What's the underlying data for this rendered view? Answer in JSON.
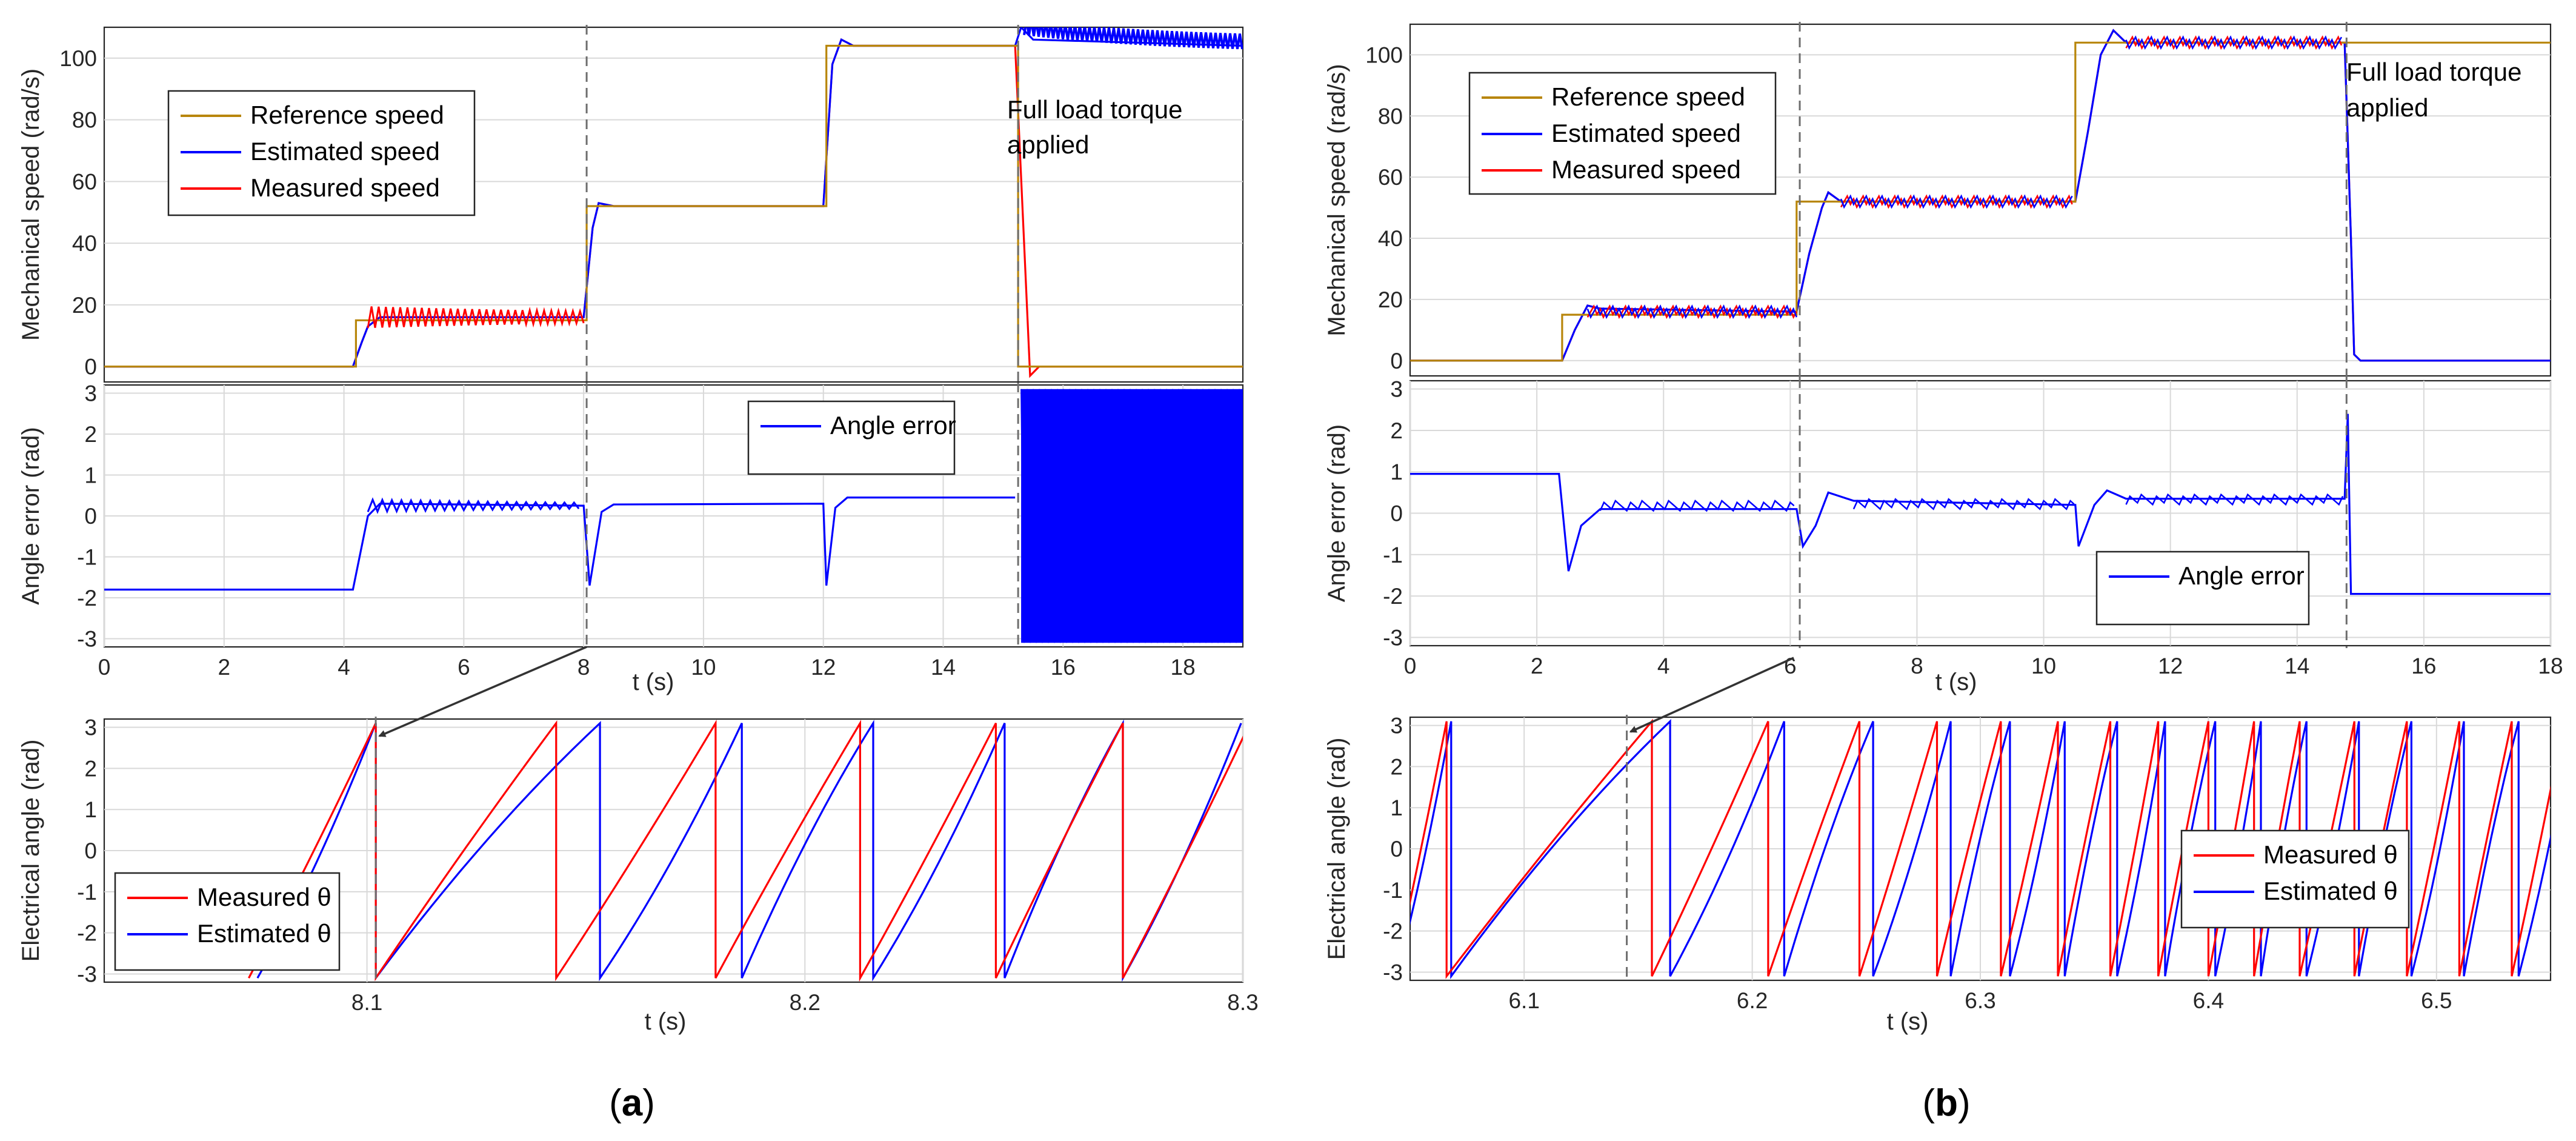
{
  "chart_data": [
    {
      "id": "a_speed",
      "type": "line",
      "xlim": [
        0,
        19
      ],
      "ylim": [
        -5,
        110
      ],
      "ylabel": "Mechanical speed (rad/s)",
      "yticks": [
        "0",
        "20",
        "40",
        "60",
        "80",
        "100"
      ],
      "grid": true,
      "legend": {
        "position": "top-left",
        "entries": [
          "Reference speed",
          "Estimated speed",
          "Measured speed"
        ]
      },
      "annotation": [
        "Full load torque",
        "applied"
      ],
      "markers_x": [
        8.05,
        15.25
      ],
      "series": [
        {
          "name": "Reference speed",
          "color": "#b8860b",
          "points": [
            [
              0,
              0
            ],
            [
              4.2,
              0
            ],
            [
              4.2,
              15
            ],
            [
              8.05,
              15
            ],
            [
              8.05,
              52
            ],
            [
              12.05,
              52
            ],
            [
              12.05,
              104
            ],
            [
              15.25,
              104
            ],
            [
              15.25,
              0
            ],
            [
              19,
              0
            ]
          ]
        },
        {
          "name": "Estimated speed",
          "color": "#0000ff",
          "points": [
            [
              0,
              0
            ],
            [
              4.15,
              0
            ],
            [
              4.3,
              8
            ],
            [
              4.4,
              13
            ],
            [
              4.6,
              16
            ],
            [
              6,
              16
            ],
            [
              8.0,
              16
            ],
            [
              8.15,
              45
            ],
            [
              8.25,
              53
            ],
            [
              8.5,
              52
            ],
            [
              12,
              52
            ],
            [
              12.15,
              98
            ],
            [
              12.3,
              106
            ],
            [
              12.5,
              104
            ],
            [
              15.2,
              104
            ],
            [
              15.3,
              110
            ],
            [
              15.5,
              106
            ],
            [
              19,
              104
            ]
          ]
        },
        {
          "name": "Measured speed",
          "color": "#ff0000",
          "points": [
            [
              0,
              0
            ],
            [
              4.15,
              0
            ],
            [
              4.3,
              8
            ],
            [
              4.4,
              13
            ],
            [
              4.6,
              16
            ],
            [
              6,
              16
            ],
            [
              8.0,
              16
            ],
            [
              8.15,
              45
            ],
            [
              8.25,
              53
            ],
            [
              8.5,
              52
            ],
            [
              12,
              52
            ],
            [
              12.15,
              98
            ],
            [
              12.3,
              106
            ],
            [
              12.5,
              104
            ],
            [
              15.2,
              104
            ],
            [
              15.35,
              40
            ],
            [
              15.45,
              -3
            ],
            [
              15.6,
              0
            ],
            [
              19,
              0
            ]
          ]
        }
      ]
    },
    {
      "id": "a_angle_err",
      "type": "line",
      "xlim": [
        0,
        19
      ],
      "ylim": [
        -3.2,
        3.2
      ],
      "xlabel": "t (s)",
      "ylabel": "Angle error (rad)",
      "xticks": [
        "0",
        "2",
        "4",
        "6",
        "8",
        "10",
        "12",
        "14",
        "16",
        "18"
      ],
      "yticks": [
        "-3",
        "-2",
        "-1",
        "0",
        "1",
        "2",
        "3"
      ],
      "grid": true,
      "legend": {
        "position": "top-right",
        "entries": [
          "Angle error"
        ]
      },
      "markers_x": [
        8.05,
        15.25
      ],
      "series": [
        {
          "name": "Angle error",
          "color": "#0000ff",
          "points": [
            [
              0,
              -1.8
            ],
            [
              4.15,
              -1.8
            ],
            [
              4.4,
              0.0
            ],
            [
              4.6,
              0.3
            ],
            [
              8.0,
              0.25
            ],
            [
              8.1,
              -1.7
            ],
            [
              8.3,
              0.1
            ],
            [
              8.5,
              0.28
            ],
            [
              12,
              0.3
            ],
            [
              12.05,
              -1.7
            ],
            [
              12.2,
              0.2
            ],
            [
              12.4,
              0.45
            ],
            [
              15.2,
              0.45
            ]
          ]
        }
      ],
      "oscillation": {
        "x_range": [
          15.3,
          19
        ],
        "amplitude": 3.1
      }
    },
    {
      "id": "a_elec_angle",
      "type": "line",
      "xlim": [
        8.04,
        8.3
      ],
      "ylim": [
        -3.2,
        3.2
      ],
      "xlabel": "t (s)",
      "ylabel": "Electrical angle (rad)",
      "xticks": [
        "8.1",
        "8.2",
        "8.3"
      ],
      "yticks": [
        "-3",
        "-2",
        "-1",
        "0",
        "1",
        "2",
        "3"
      ],
      "grid": true,
      "legend": {
        "position": "bottom-left",
        "entries": [
          "Measured θ",
          "Estimated θ"
        ]
      },
      "markers_x": [
        8.102
      ],
      "series": [
        {
          "name": "Measured θ",
          "color": "#ff0000",
          "wrap_times": [
            8.102,
            8.1432,
            8.1796,
            8.2126,
            8.2436,
            8.2726
          ]
        },
        {
          "name": "Estimated θ",
          "color": "#0000ff",
          "wrap_times": [
            8.102,
            8.1532,
            8.1856,
            8.2156,
            8.2456,
            8.2726
          ]
        }
      ]
    },
    {
      "id": "b_speed",
      "type": "line",
      "xlim": [
        0,
        18
      ],
      "ylim": [
        -5,
        110
      ],
      "ylabel": "Mechanical speed (rad/s)",
      "yticks": [
        "0",
        "20",
        "40",
        "60",
        "80",
        "100"
      ],
      "grid": true,
      "legend": {
        "position": "top-left",
        "entries": [
          "Reference speed",
          "Estimated speed",
          "Measured speed"
        ]
      },
      "annotation": [
        "Full load torque",
        "applied"
      ],
      "markers_x": [
        6.15,
        14.78
      ],
      "series": [
        {
          "name": "Reference speed",
          "color": "#b8860b",
          "points": [
            [
              0,
              0
            ],
            [
              2.4,
              0
            ],
            [
              2.4,
              15
            ],
            [
              6.1,
              15
            ],
            [
              6.1,
              52
            ],
            [
              10.5,
              52
            ],
            [
              10.5,
              104
            ],
            [
              18,
              104
            ]
          ]
        },
        {
          "name": "Estimated speed",
          "color": "#0000ff",
          "points": [
            [
              0,
              0
            ],
            [
              2.4,
              0
            ],
            [
              2.6,
              10
            ],
            [
              2.8,
              18
            ],
            [
              3,
              17
            ],
            [
              6.1,
              16
            ],
            [
              6.3,
              35
            ],
            [
              6.5,
              50
            ],
            [
              6.6,
              55
            ],
            [
              6.8,
              52
            ],
            [
              10.5,
              52
            ],
            [
              10.7,
              75
            ],
            [
              10.9,
              100
            ],
            [
              11.1,
              108
            ],
            [
              11.3,
              104
            ],
            [
              14.75,
              104
            ],
            [
              14.85,
              40
            ],
            [
              14.9,
              2
            ],
            [
              15,
              0
            ],
            [
              18,
              0
            ]
          ]
        },
        {
          "name": "Measured speed",
          "color": "#ff0000",
          "points": [
            [
              0,
              0
            ],
            [
              2.4,
              0
            ],
            [
              2.6,
              10
            ],
            [
              2.8,
              18
            ],
            [
              3,
              17
            ],
            [
              6.1,
              16
            ],
            [
              6.3,
              35
            ],
            [
              6.5,
              50
            ],
            [
              6.6,
              55
            ],
            [
              6.8,
              52
            ],
            [
              10.5,
              52
            ],
            [
              10.7,
              75
            ],
            [
              10.9,
              100
            ],
            [
              11.1,
              108
            ],
            [
              11.3,
              104
            ],
            [
              14.75,
              104
            ],
            [
              14.85,
              40
            ],
            [
              14.9,
              2
            ],
            [
              15,
              0
            ],
            [
              18,
              0
            ]
          ]
        }
      ]
    },
    {
      "id": "b_angle_err",
      "type": "line",
      "xlim": [
        0,
        18
      ],
      "ylim": [
        -3.2,
        3.2
      ],
      "xlabel": "t (s)",
      "ylabel": "Angle error (rad)",
      "xticks": [
        "0",
        "2",
        "4",
        "6",
        "8",
        "10",
        "12",
        "14",
        "16",
        "18"
      ],
      "yticks": [
        "-3",
        "-2",
        "-1",
        "0",
        "1",
        "2",
        "3"
      ],
      "grid": true,
      "legend": {
        "position": "bottom-right",
        "entries": [
          "Angle error"
        ]
      },
      "markers_x": [
        6.15,
        14.78
      ],
      "series": [
        {
          "name": "Angle error",
          "color": "#0000ff",
          "points": [
            [
              0,
              0.95
            ],
            [
              2.35,
              0.95
            ],
            [
              2.5,
              -1.4
            ],
            [
              2.7,
              -0.3
            ],
            [
              3,
              0.1
            ],
            [
              6.1,
              0.1
            ],
            [
              6.2,
              -0.8
            ],
            [
              6.4,
              -0.3
            ],
            [
              6.6,
              0.5
            ],
            [
              7,
              0.3
            ],
            [
              10.5,
              0.2
            ],
            [
              10.55,
              -0.8
            ],
            [
              10.8,
              0.2
            ],
            [
              11,
              0.55
            ],
            [
              11.3,
              0.35
            ],
            [
              14.75,
              0.35
            ],
            [
              14.8,
              2.4
            ],
            [
              14.85,
              -1.95
            ],
            [
              18,
              -1.95
            ]
          ]
        }
      ]
    },
    {
      "id": "b_elec_angle",
      "type": "line",
      "xlim": [
        6.05,
        6.55
      ],
      "ylim": [
        -3.2,
        3.2
      ],
      "xlabel": "t (s)",
      "ylabel": "Electrical angle (rad)",
      "xticks": [
        "6.1",
        "6.2",
        "6.3",
        "6.4",
        "6.5"
      ],
      "yticks": [
        "-3",
        "-2",
        "-1",
        "0",
        "1",
        "2",
        "3"
      ],
      "grid": true,
      "legend": {
        "position": "center-right",
        "entries": [
          "Measured θ",
          "Estimated θ"
        ]
      },
      "markers_x": [
        6.145
      ],
      "series": [
        {
          "name": "Measured θ",
          "color": "#ff0000",
          "wrap_times": [
            6.066,
            6.156,
            6.207,
            6.247,
            6.281,
            6.309,
            6.334,
            6.357,
            6.378,
            6.4,
            6.42,
            6.44,
            6.464,
            6.487,
            6.51,
            6.533
          ]
        },
        {
          "name": "Estimated θ",
          "color": "#0000ff",
          "wrap_times": [
            6.068,
            6.164,
            6.214,
            6.253,
            6.287,
            6.313,
            6.337,
            6.36,
            6.381,
            6.403,
            6.423,
            6.443,
            6.466,
            6.489,
            6.512,
            6.536
          ]
        }
      ]
    }
  ],
  "panel_labels": {
    "a": "a",
    "b": "b"
  }
}
